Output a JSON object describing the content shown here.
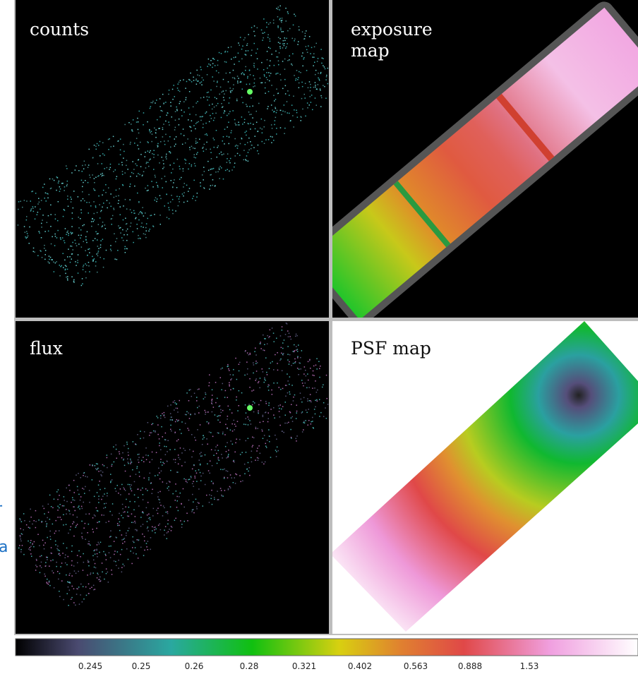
{
  "panels": [
    {
      "label": "counts"
    },
    {
      "label": "exposure map"
    },
    {
      "label": "flux"
    },
    {
      "label": "PSF map"
    }
  ],
  "left_edge_text": [
    "r",
    "a"
  ],
  "colorbar": {
    "ticks": [
      0.245,
      0.25,
      0.26,
      0.28,
      0.321,
      0.402,
      0.563,
      0.888,
      1.53
    ]
  }
}
